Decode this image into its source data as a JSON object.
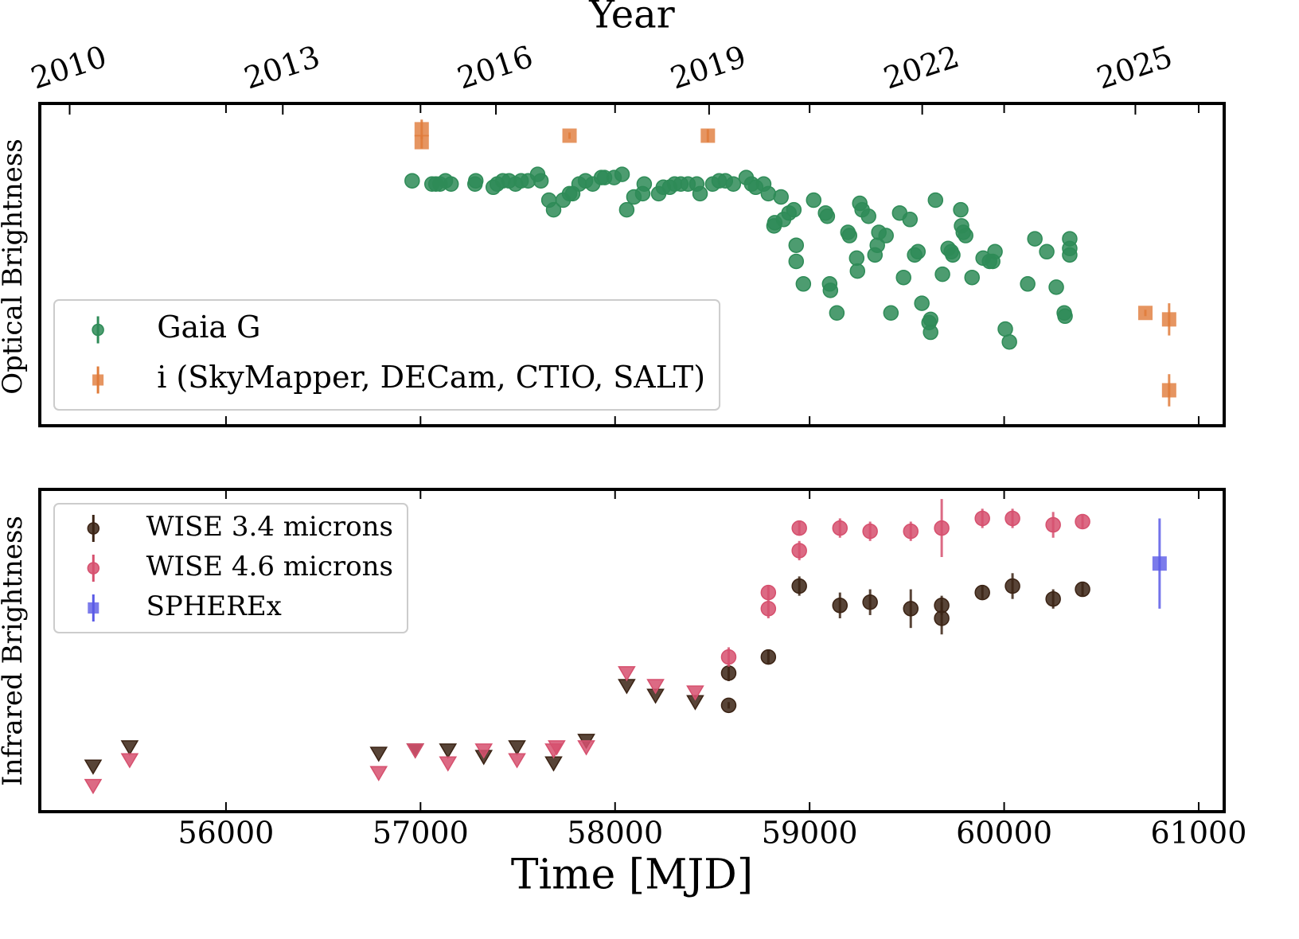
{
  "chart_data": [
    {
      "type": "scatter",
      "x2label": "Year",
      "ylabel": "Optical Brightness",
      "xlim": [
        55043,
        61131
      ],
      "xticks": [
        56000,
        57000,
        58000,
        59000,
        60000,
        61000
      ],
      "show_xticklabels": false,
      "x2lim": [
        2009.58,
        2026.25
      ],
      "x2ticks": [
        2010,
        2013,
        2016,
        2019,
        2022,
        2025
      ],
      "ylim": [
        0,
        100
      ],
      "legend": "lower left",
      "series": [
        {
          "name": "Gaia G",
          "color": "#2e8b57",
          "marker": "circle",
          "x": [
            56957,
            57059,
            57079,
            57100,
            57128,
            57157,
            57280,
            57284,
            57374,
            57394,
            57423,
            57455,
            57488,
            57517,
            57553,
            57602,
            57619,
            57660,
            57684,
            57733,
            57766,
            57782,
            57815,
            57848,
            57885,
            57930,
            57946,
            57995,
            58036,
            58060,
            58097,
            58142,
            58150,
            58224,
            58248,
            58281,
            58306,
            58338,
            58375,
            58420,
            58437,
            58502,
            58535,
            58567,
            58608,
            58674,
            58702,
            58723,
            58764,
            58788,
            58817,
            58821,
            58853,
            58866,
            58894,
            58919,
            58931,
            58931,
            58968,
            59021,
            59082,
            59091,
            59103,
            59107,
            59140,
            59197,
            59205,
            59242,
            59246,
            59258,
            59270,
            59303,
            59336,
            59348,
            59356,
            59393,
            59418,
            59463,
            59483,
            59516,
            59540,
            59557,
            59577,
            59614,
            59622,
            59622,
            59647,
            59683,
            59712,
            59728,
            59736,
            59777,
            59781,
            59790,
            59802,
            59835,
            59892,
            59925,
            59941,
            59953,
            60006,
            60027,
            60121,
            60158,
            60219,
            60268,
            60309,
            60313,
            60337,
            60337,
            60337
          ],
          "values": [
            76,
            75,
            75,
            75,
            76,
            75,
            75,
            76,
            74,
            75,
            76,
            76,
            75,
            76,
            76,
            78,
            76,
            70,
            67,
            70,
            72,
            72,
            75,
            76,
            75,
            77,
            77,
            77,
            78,
            67,
            71,
            72,
            75,
            72,
            74,
            74,
            75,
            75,
            75,
            75,
            72,
            75,
            76,
            76,
            75,
            77,
            75,
            74,
            75,
            72,
            62,
            63,
            71,
            64,
            66,
            67,
            56,
            51,
            44,
            70,
            66,
            65,
            44,
            42,
            35,
            60,
            59,
            52,
            48,
            69,
            67,
            65,
            53,
            56,
            60,
            59,
            35,
            66,
            46,
            64,
            53,
            54,
            38,
            32,
            29,
            33,
            70,
            47,
            55,
            54,
            53,
            67,
            62,
            60,
            59,
            46,
            52,
            51,
            51,
            54,
            30,
            26,
            44,
            58,
            54,
            43,
            35,
            34,
            58,
            55,
            53
          ]
        },
        {
          "name": "i (SkyMapper, DECam, CTIO, SALT)",
          "color": "#e07b39",
          "marker": "square",
          "x": [
            57006,
            57006,
            57766,
            58477,
            60726,
            60848,
            60848
          ],
          "values": [
            92,
            88,
            90,
            90,
            35,
            33,
            11
          ],
          "errors": [
            3,
            2,
            1,
            2,
            1,
            5,
            5
          ]
        }
      ]
    },
    {
      "type": "scatter",
      "xlabel": "Time [MJD]",
      "ylabel": "Infrared Brightness",
      "xlim": [
        55043,
        61131
      ],
      "xticks": [
        56000,
        57000,
        58000,
        59000,
        60000,
        61000
      ],
      "show_xticklabels": true,
      "ylim": [
        0,
        100
      ],
      "legend": "upper left",
      "series": [
        {
          "color": "#3b2314",
          "marker": "triangle-down",
          "x": [
            55317,
            55505,
            56785,
            56973,
            57141,
            57325,
            57496,
            57684,
            57852,
            58060,
            58208,
            58412
          ],
          "values": [
            14,
            20,
            18,
            19,
            19,
            17,
            20,
            15,
            22,
            39,
            36,
            34
          ]
        },
        {
          "color": "#d6506e",
          "marker": "triangle-down",
          "x": [
            55317,
            55505,
            56785,
            56973,
            57141,
            57325,
            57496,
            57684,
            57700,
            57852,
            58060,
            58208,
            58412
          ],
          "values": [
            8,
            16,
            12,
            19,
            15,
            19,
            16,
            19,
            20,
            20,
            43,
            39,
            37
          ]
        },
        {
          "name": "WISE 3.4 microns",
          "color": "#3b2314",
          "marker": "circle",
          "x": [
            58584,
            58584,
            58788,
            58947,
            59156,
            59311,
            59520,
            59679,
            59679,
            59888,
            60043,
            60252,
            60403
          ],
          "values": [
            33,
            43,
            48,
            70,
            64,
            65,
            63,
            64,
            60,
            68,
            70,
            66,
            69
          ],
          "errors": [
            1,
            2.5,
            2,
            3,
            4,
            4,
            6,
            3,
            5,
            2,
            4,
            3,
            2
          ]
        },
        {
          "name": "WISE 4.6 microns",
          "color": "#d6506e",
          "marker": "circle",
          "x": [
            58584,
            58788,
            58788,
            58947,
            58947,
            59156,
            59311,
            59520,
            59679,
            59888,
            60043,
            60252,
            60403
          ],
          "values": [
            48,
            63,
            68,
            81,
            88,
            88,
            87,
            87,
            88,
            91,
            91,
            89,
            90
          ],
          "errors": [
            3,
            3,
            2,
            3,
            2,
            3,
            3,
            3,
            9,
            3,
            3,
            4,
            2
          ]
        },
        {
          "name": "SPHEREx",
          "color": "#5a5ae6",
          "marker": "square",
          "x": [
            60799
          ],
          "values": [
            77
          ],
          "errors": [
            14
          ]
        }
      ]
    }
  ]
}
